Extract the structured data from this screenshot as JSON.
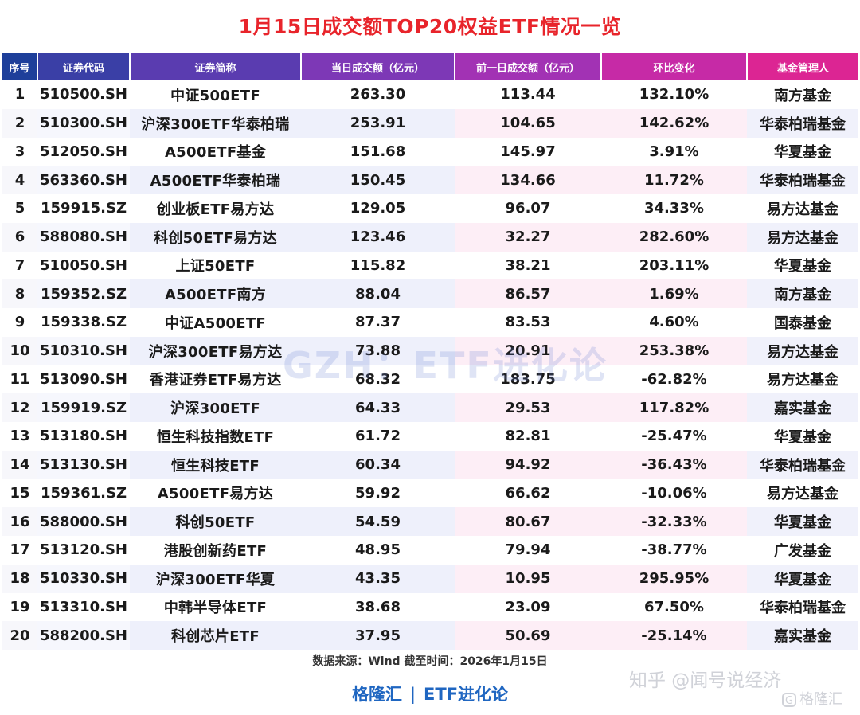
{
  "title": "1月15日成交额TOP20权益ETF情况一览",
  "headers": [
    "序号",
    "证券代码",
    "证券简称",
    "当日成交额（亿元）",
    "前一日成交额（亿元）",
    "环比变化",
    "基金管理人"
  ],
  "colors": {
    "title": "#e8242b",
    "increase": "#e31e24",
    "decrease": "#1ea548",
    "brand": "#1f66c1"
  },
  "rows": [
    {
      "idx": "1",
      "code": "510500.SH",
      "name": "中证500ETF",
      "cur": "263.30",
      "prev": "113.44",
      "chg": "132.10%",
      "mgr": "南方基金"
    },
    {
      "idx": "2",
      "code": "510300.SH",
      "name": "沪深300ETF华泰柏瑞",
      "cur": "253.91",
      "prev": "104.65",
      "chg": "142.62%",
      "mgr": "华泰柏瑞基金"
    },
    {
      "idx": "3",
      "code": "512050.SH",
      "name": "A500ETF基金",
      "cur": "151.68",
      "prev": "145.97",
      "chg": "3.91%",
      "mgr": "华夏基金"
    },
    {
      "idx": "4",
      "code": "563360.SH",
      "name": "A500ETF华泰柏瑞",
      "cur": "150.45",
      "prev": "134.66",
      "chg": "11.72%",
      "mgr": "华泰柏瑞基金"
    },
    {
      "idx": "5",
      "code": "159915.SZ",
      "name": "创业板ETF易方达",
      "cur": "129.05",
      "prev": "96.07",
      "chg": "34.33%",
      "mgr": "易方达基金"
    },
    {
      "idx": "6",
      "code": "588080.SH",
      "name": "科创50ETF易方达",
      "cur": "123.46",
      "prev": "32.27",
      "chg": "282.60%",
      "mgr": "易方达基金"
    },
    {
      "idx": "7",
      "code": "510050.SH",
      "name": "上证50ETF",
      "cur": "115.82",
      "prev": "38.21",
      "chg": "203.11%",
      "mgr": "华夏基金"
    },
    {
      "idx": "8",
      "code": "159352.SZ",
      "name": "A500ETF南方",
      "cur": "88.04",
      "prev": "86.57",
      "chg": "1.69%",
      "mgr": "南方基金"
    },
    {
      "idx": "9",
      "code": "159338.SZ",
      "name": "中证A500ETF",
      "cur": "87.37",
      "prev": "83.53",
      "chg": "4.60%",
      "mgr": "国泰基金"
    },
    {
      "idx": "10",
      "code": "510310.SH",
      "name": "沪深300ETF易方达",
      "cur": "73.88",
      "prev": "20.91",
      "chg": "253.38%",
      "mgr": "易方达基金"
    },
    {
      "idx": "11",
      "code": "513090.SH",
      "name": "香港证券ETF易方达",
      "cur": "68.32",
      "prev": "183.75",
      "chg": "-62.82%",
      "mgr": "易方达基金"
    },
    {
      "idx": "12",
      "code": "159919.SZ",
      "name": "沪深300ETF",
      "cur": "64.33",
      "prev": "29.53",
      "chg": "117.82%",
      "mgr": "嘉实基金"
    },
    {
      "idx": "13",
      "code": "513180.SH",
      "name": "恒生科技指数ETF",
      "cur": "61.72",
      "prev": "82.81",
      "chg": "-25.47%",
      "mgr": "华夏基金"
    },
    {
      "idx": "14",
      "code": "513130.SH",
      "name": "恒生科技ETF",
      "cur": "60.34",
      "prev": "94.92",
      "chg": "-36.43%",
      "mgr": "华泰柏瑞基金"
    },
    {
      "idx": "15",
      "code": "159361.SZ",
      "name": "A500ETF易方达",
      "cur": "59.92",
      "prev": "66.62",
      "chg": "-10.06%",
      "mgr": "易方达基金"
    },
    {
      "idx": "16",
      "code": "588000.SH",
      "name": "科创50ETF",
      "cur": "54.59",
      "prev": "80.67",
      "chg": "-32.33%",
      "mgr": "华夏基金"
    },
    {
      "idx": "17",
      "code": "513120.SH",
      "name": "港股创新药ETF",
      "cur": "48.95",
      "prev": "79.94",
      "chg": "-38.77%",
      "mgr": "广发基金"
    },
    {
      "idx": "18",
      "code": "510330.SH",
      "name": "沪深300ETF华夏",
      "cur": "43.35",
      "prev": "10.95",
      "chg": "295.95%",
      "mgr": "华夏基金"
    },
    {
      "idx": "19",
      "code": "513310.SH",
      "name": "中韩半导体ETF",
      "cur": "38.68",
      "prev": "23.09",
      "chg": "67.50%",
      "mgr": "华泰柏瑞基金"
    },
    {
      "idx": "20",
      "code": "588200.SH",
      "name": "科创芯片ETF",
      "cur": "37.95",
      "prev": "50.69",
      "chg": "-25.14%",
      "mgr": "嘉实基金"
    }
  ],
  "watermark": "GZH：ETF进化论",
  "source": "数据来源：Wind 截至时间：2026年1月15日",
  "brand": {
    "left": "格隆汇",
    "separator": "|",
    "right": "ETF进化论"
  },
  "zhihu_watermark": "知乎 @闻号说经济",
  "corner_watermark": {
    "icon": "G",
    "text": "格隆汇"
  }
}
